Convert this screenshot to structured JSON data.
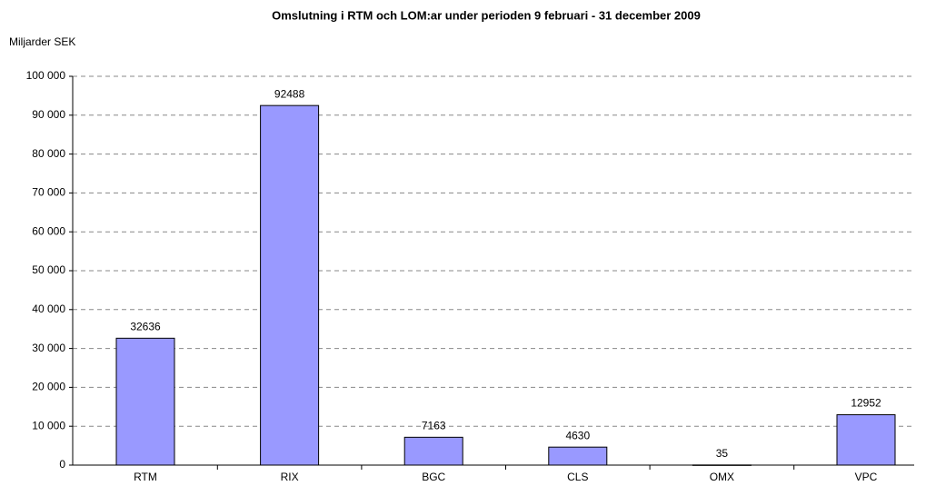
{
  "chart_data": {
    "type": "bar",
    "title": "Omslutning i RTM och LOM:ar under perioden 9 februari - 31 december 2009",
    "y_axis_label": "Miljarder SEK",
    "categories": [
      "RTM",
      "RIX",
      "BGC",
      "CLS",
      "OMX",
      "VPC"
    ],
    "values": [
      32636,
      92488,
      7163,
      4630,
      35,
      12952
    ],
    "color": "#9999ff",
    "ylim": [
      0,
      100000
    ],
    "yticks": [
      0,
      {
        "value": 10000,
        "label": "10 000"
      },
      {
        "value": 20000,
        "label": "20 000"
      },
      {
        "value": 30000,
        "label": "30 000"
      },
      {
        "value": 40000,
        "label": "40 000"
      },
      {
        "value": 50000,
        "label": "50 000"
      },
      {
        "value": 60000,
        "label": "60 000"
      },
      {
        "value": 70000,
        "label": "70 000"
      },
      {
        "value": 80000,
        "label": "80 000"
      },
      {
        "value": 90000,
        "label": "90 000"
      },
      {
        "value": 100000,
        "label": "100 000"
      }
    ],
    "grid": true
  }
}
